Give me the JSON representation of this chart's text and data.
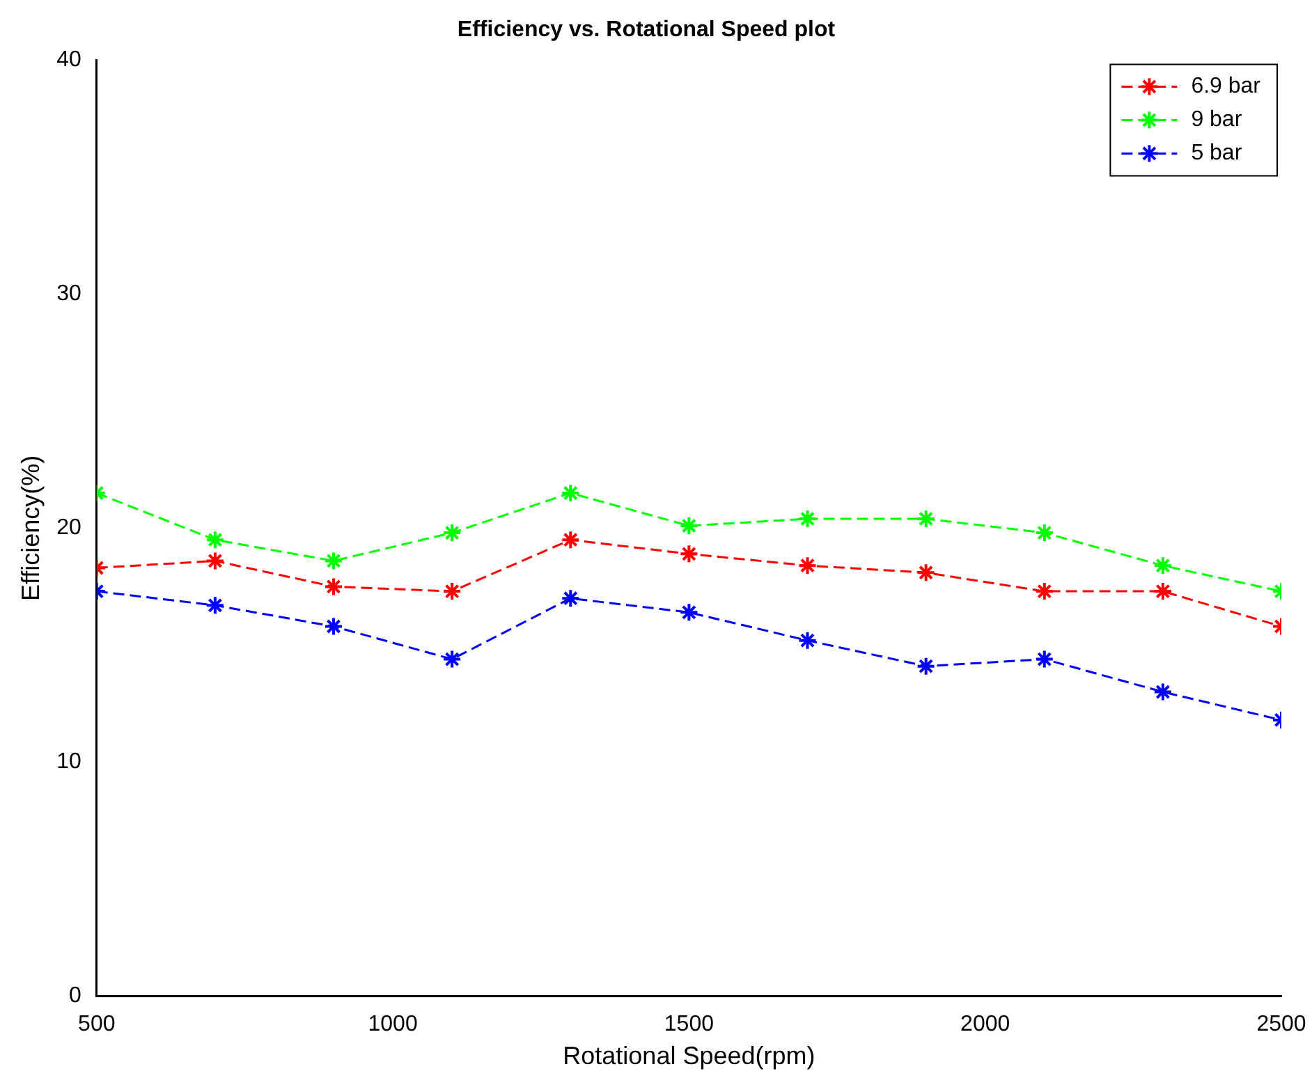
{
  "chart_data": {
    "type": "line",
    "title": "Efficiency vs. Rotational Speed plot",
    "xlabel": "Rotational Speed(rpm)",
    "ylabel": "Efficiency(%)",
    "x": [
      500,
      700,
      900,
      1100,
      1300,
      1500,
      1700,
      1900,
      2100,
      2300,
      2500
    ],
    "series": [
      {
        "name": "6.9 bar",
        "color": "#ff0000",
        "values": [
          18.3,
          18.6,
          17.5,
          17.3,
          19.5,
          18.9,
          18.4,
          18.1,
          17.3,
          17.3,
          15.8
        ]
      },
      {
        "name": "9 bar",
        "color": "#00ff00",
        "values": [
          21.5,
          19.5,
          18.6,
          19.8,
          21.5,
          20.1,
          20.4,
          20.4,
          19.8,
          18.4,
          17.3
        ]
      },
      {
        "name": "5 bar",
        "color": "#0000ff",
        "values": [
          17.3,
          16.7,
          15.8,
          14.4,
          17.0,
          16.4,
          15.2,
          14.1,
          14.4,
          13.0,
          11.8
        ]
      }
    ],
    "xlim": [
      500,
      2500
    ],
    "xticks": [
      500,
      1000,
      1500,
      2000,
      2500
    ],
    "ylim": [
      0,
      40
    ],
    "yticks": [
      0,
      10,
      20,
      30,
      40
    ],
    "grid": false,
    "legend": "top right",
    "marker": "cross",
    "line_style": "dashed"
  }
}
